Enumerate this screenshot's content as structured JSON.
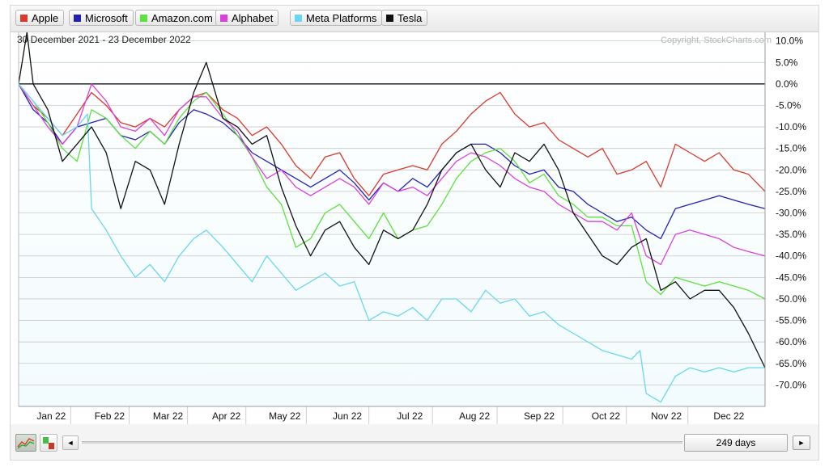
{
  "legend": [
    {
      "label": "Apple",
      "color": "#d93a2b"
    },
    {
      "label": "Microsoft",
      "color": "#2222b4"
    },
    {
      "label": "Amazon.com",
      "color": "#5ce23c"
    },
    {
      "label": "Alphabet",
      "color": "#dc40dc"
    },
    {
      "label": "Meta Platforms",
      "color": "#6ad6ef"
    },
    {
      "label": "Tesla",
      "color": "#111111"
    }
  ],
  "header": {
    "date_range": "30 December 2021 - 23 December 2022",
    "copyright": "Copyright, StockCharts.com"
  },
  "controls": {
    "period": "249 days",
    "left_arrow": "◄",
    "right_arrow": "►",
    "perf_icon": "performance-chart-icon",
    "bar_icon": "bar-chart-icon"
  },
  "chart_data": {
    "type": "line",
    "ylabel": "",
    "ytick_labels": [
      "10.0%",
      "5.0%",
      "0.0%",
      "-5.0%",
      "-10.0%",
      "-15.0%",
      "-20.0%",
      "-25.0%",
      "-30.0%",
      "-35.0%",
      "-40.0%",
      "-45.0%",
      "-50.0%",
      "-55.0%",
      "-60.0%",
      "-65.0%",
      "-70.0%"
    ],
    "ylim": [
      -75,
      12
    ],
    "ytick_values": [
      10,
      5,
      0,
      -5,
      -10,
      -15,
      -20,
      -25,
      -30,
      -35,
      -40,
      -45,
      -50,
      -55,
      -60,
      -65,
      -70
    ],
    "xtick_labels": [
      "Jan 22",
      "Feb 22",
      "Mar 22",
      "Apr 22",
      "May 22",
      "Jun 22",
      "Jul 22",
      "Aug 22",
      "Sep 22",
      "Oct 22",
      "Nov 22",
      "Dec 22"
    ],
    "xtick_dates": [
      "2022-01-10",
      "2022-02-07",
      "2022-03-07",
      "2022-04-04",
      "2022-05-02",
      "2022-06-01",
      "2022-07-01",
      "2022-08-01",
      "2022-09-01",
      "2022-10-03",
      "2022-11-01",
      "2022-12-01"
    ],
    "xlim": [
      "2021-12-30",
      "2022-12-23"
    ],
    "grid": true,
    "baseline": 0,
    "background": "#f2fbfe",
    "series": [
      {
        "name": "Apple",
        "color": "#d93a2b",
        "x": [
          "2021-12-30",
          "2022-01-06",
          "2022-01-13",
          "2022-01-20",
          "2022-01-27",
          "2022-02-03",
          "2022-02-10",
          "2022-02-17",
          "2022-02-24",
          "2022-03-03",
          "2022-03-10",
          "2022-03-17",
          "2022-03-24",
          "2022-03-30",
          "2022-04-07",
          "2022-04-14",
          "2022-04-21",
          "2022-04-28",
          "2022-05-05",
          "2022-05-12",
          "2022-05-19",
          "2022-05-26",
          "2022-06-02",
          "2022-06-09",
          "2022-06-16",
          "2022-06-23",
          "2022-06-30",
          "2022-07-07",
          "2022-07-14",
          "2022-07-21",
          "2022-07-28",
          "2022-08-04",
          "2022-08-11",
          "2022-08-18",
          "2022-08-25",
          "2022-09-01",
          "2022-09-08",
          "2022-09-15",
          "2022-09-22",
          "2022-09-29",
          "2022-10-06",
          "2022-10-13",
          "2022-10-20",
          "2022-10-27",
          "2022-11-03",
          "2022-11-10",
          "2022-11-17",
          "2022-11-24",
          "2022-12-01",
          "2022-12-08",
          "2022-12-15",
          "2022-12-23"
        ],
        "y": [
          0,
          -5,
          -8,
          -12,
          -7,
          -2,
          -5,
          -9,
          -10,
          -8,
          -10,
          -6,
          -3,
          -2,
          -6,
          -8,
          -12,
          -10,
          -14,
          -19,
          -22,
          -17,
          -16,
          -22,
          -26,
          -21,
          -20,
          -19,
          -20,
          -14,
          -11,
          -7,
          -4,
          -2,
          -7,
          -10,
          -9,
          -13,
          -15,
          -17,
          -15,
          -21,
          -20,
          -18,
          -24,
          -14,
          -16,
          -18,
          -16,
          -20,
          -21,
          -25
        ]
      },
      {
        "name": "Microsoft",
        "color": "#2222b4",
        "x": [
          "2021-12-30",
          "2022-01-06",
          "2022-01-13",
          "2022-01-20",
          "2022-01-27",
          "2022-02-03",
          "2022-02-10",
          "2022-02-17",
          "2022-02-24",
          "2022-03-03",
          "2022-03-10",
          "2022-03-17",
          "2022-03-24",
          "2022-03-30",
          "2022-04-07",
          "2022-04-14",
          "2022-04-21",
          "2022-04-28",
          "2022-05-05",
          "2022-05-12",
          "2022-05-19",
          "2022-05-26",
          "2022-06-02",
          "2022-06-09",
          "2022-06-16",
          "2022-06-23",
          "2022-06-30",
          "2022-07-07",
          "2022-07-14",
          "2022-07-21",
          "2022-07-28",
          "2022-08-04",
          "2022-08-11",
          "2022-08-18",
          "2022-08-25",
          "2022-09-01",
          "2022-09-08",
          "2022-09-15",
          "2022-09-22",
          "2022-09-29",
          "2022-10-06",
          "2022-10-13",
          "2022-10-20",
          "2022-10-27",
          "2022-11-03",
          "2022-11-10",
          "2022-11-17",
          "2022-11-24",
          "2022-12-01",
          "2022-12-08",
          "2022-12-15",
          "2022-12-23"
        ],
        "y": [
          0,
          -6,
          -9,
          -14,
          -10,
          -9,
          -8,
          -12,
          -13,
          -11,
          -14,
          -9,
          -6,
          -7,
          -9,
          -12,
          -16,
          -18,
          -20,
          -22,
          -24,
          -22,
          -20,
          -23,
          -27,
          -23,
          -25,
          -22,
          -24,
          -20,
          -16,
          -14,
          -14,
          -16,
          -19,
          -21,
          -20,
          -24,
          -25,
          -28,
          -30,
          -32,
          -31,
          -34,
          -36,
          -29,
          -28,
          -27,
          -26,
          -27,
          -28,
          -29
        ]
      },
      {
        "name": "Amazon.com",
        "color": "#5ce23c",
        "x": [
          "2021-12-30",
          "2022-01-06",
          "2022-01-13",
          "2022-01-20",
          "2022-01-27",
          "2022-02-03",
          "2022-02-10",
          "2022-02-17",
          "2022-02-24",
          "2022-03-03",
          "2022-03-10",
          "2022-03-17",
          "2022-03-24",
          "2022-03-30",
          "2022-04-07",
          "2022-04-14",
          "2022-04-21",
          "2022-04-28",
          "2022-05-05",
          "2022-05-12",
          "2022-05-19",
          "2022-05-26",
          "2022-06-02",
          "2022-06-09",
          "2022-06-16",
          "2022-06-23",
          "2022-06-30",
          "2022-07-07",
          "2022-07-14",
          "2022-07-21",
          "2022-07-28",
          "2022-08-04",
          "2022-08-11",
          "2022-08-18",
          "2022-08-25",
          "2022-09-01",
          "2022-09-08",
          "2022-09-15",
          "2022-09-22",
          "2022-09-29",
          "2022-10-06",
          "2022-10-13",
          "2022-10-20",
          "2022-10-27",
          "2022-11-03",
          "2022-11-10",
          "2022-11-17",
          "2022-11-24",
          "2022-12-01",
          "2022-12-08",
          "2022-12-15",
          "2022-12-23"
        ],
        "y": [
          0,
          -4,
          -9,
          -15,
          -18,
          -6,
          -8,
          -12,
          -15,
          -11,
          -14,
          -8,
          -4,
          -2,
          -7,
          -12,
          -17,
          -24,
          -28,
          -38,
          -36,
          -30,
          -28,
          -32,
          -36,
          -30,
          -36,
          -34,
          -33,
          -28,
          -22,
          -18,
          -16,
          -15,
          -18,
          -23,
          -21,
          -26,
          -28,
          -31,
          -31,
          -33,
          -33,
          -46,
          -49,
          -45,
          -46,
          -47,
          -46,
          -47,
          -48,
          -50
        ]
      },
      {
        "name": "Alphabet",
        "color": "#dc40dc",
        "x": [
          "2021-12-30",
          "2022-01-06",
          "2022-01-13",
          "2022-01-20",
          "2022-01-27",
          "2022-02-03",
          "2022-02-10",
          "2022-02-17",
          "2022-02-24",
          "2022-03-03",
          "2022-03-10",
          "2022-03-17",
          "2022-03-24",
          "2022-03-30",
          "2022-04-07",
          "2022-04-14",
          "2022-04-21",
          "2022-04-28",
          "2022-05-05",
          "2022-05-12",
          "2022-05-19",
          "2022-05-26",
          "2022-06-02",
          "2022-06-09",
          "2022-06-16",
          "2022-06-23",
          "2022-06-30",
          "2022-07-07",
          "2022-07-14",
          "2022-07-21",
          "2022-07-28",
          "2022-08-04",
          "2022-08-11",
          "2022-08-18",
          "2022-08-25",
          "2022-09-01",
          "2022-09-08",
          "2022-09-15",
          "2022-09-22",
          "2022-09-29",
          "2022-10-06",
          "2022-10-13",
          "2022-10-20",
          "2022-10-27",
          "2022-11-03",
          "2022-11-10",
          "2022-11-17",
          "2022-11-24",
          "2022-12-01",
          "2022-12-08",
          "2022-12-15",
          "2022-12-23"
        ],
        "y": [
          0,
          -5,
          -10,
          -14,
          -10,
          0,
          -4,
          -10,
          -11,
          -8,
          -12,
          -6,
          -3,
          -3,
          -8,
          -11,
          -17,
          -22,
          -20,
          -24,
          -26,
          -24,
          -22,
          -24,
          -28,
          -23,
          -25,
          -24,
          -26,
          -22,
          -18,
          -16,
          -17,
          -19,
          -22,
          -24,
          -25,
          -28,
          -30,
          -32,
          -32,
          -34,
          -30,
          -40,
          -42,
          -35,
          -34,
          -35,
          -36,
          -38,
          -39,
          -40
        ]
      },
      {
        "name": "Meta Platforms",
        "color": "#6ad6ef",
        "x": [
          "2021-12-30",
          "2022-01-06",
          "2022-01-13",
          "2022-01-20",
          "2022-01-27",
          "2022-02-01",
          "2022-02-03",
          "2022-02-10",
          "2022-02-17",
          "2022-02-24",
          "2022-03-03",
          "2022-03-10",
          "2022-03-17",
          "2022-03-24",
          "2022-03-30",
          "2022-04-07",
          "2022-04-14",
          "2022-04-21",
          "2022-04-28",
          "2022-05-05",
          "2022-05-12",
          "2022-05-19",
          "2022-05-26",
          "2022-06-02",
          "2022-06-09",
          "2022-06-16",
          "2022-06-23",
          "2022-06-30",
          "2022-07-07",
          "2022-07-14",
          "2022-07-21",
          "2022-07-28",
          "2022-08-04",
          "2022-08-11",
          "2022-08-18",
          "2022-08-25",
          "2022-09-01",
          "2022-09-08",
          "2022-09-15",
          "2022-09-22",
          "2022-09-29",
          "2022-10-06",
          "2022-10-13",
          "2022-10-20",
          "2022-10-24",
          "2022-10-27",
          "2022-11-03",
          "2022-11-10",
          "2022-11-17",
          "2022-11-24",
          "2022-12-01",
          "2022-12-08",
          "2022-12-15",
          "2022-12-23"
        ],
        "y": [
          0,
          -4,
          -8,
          -12,
          -10,
          -7,
          -29,
          -34,
          -40,
          -45,
          -42,
          -46,
          -40,
          -36,
          -34,
          -38,
          -42,
          -46,
          -40,
          -44,
          -48,
          -46,
          -44,
          -47,
          -46,
          -55,
          -53,
          -54,
          -52,
          -55,
          -50,
          -50,
          -53,
          -48,
          -51,
          -50,
          -54,
          -53,
          -56,
          -58,
          -60,
          -62,
          -63,
          -64,
          -62,
          -72,
          -74,
          -68,
          -66,
          -67,
          -66,
          -67,
          -66,
          -66
        ]
      },
      {
        "name": "Tesla",
        "color": "#111111",
        "x": [
          "2021-12-30",
          "2022-01-03",
          "2022-01-06",
          "2022-01-13",
          "2022-01-20",
          "2022-01-27",
          "2022-02-03",
          "2022-02-10",
          "2022-02-17",
          "2022-02-24",
          "2022-03-03",
          "2022-03-10",
          "2022-03-17",
          "2022-03-24",
          "2022-03-30",
          "2022-04-07",
          "2022-04-14",
          "2022-04-21",
          "2022-04-28",
          "2022-05-05",
          "2022-05-12",
          "2022-05-19",
          "2022-05-26",
          "2022-06-02",
          "2022-06-09",
          "2022-06-16",
          "2022-06-23",
          "2022-06-30",
          "2022-07-07",
          "2022-07-14",
          "2022-07-21",
          "2022-07-28",
          "2022-08-04",
          "2022-08-11",
          "2022-08-18",
          "2022-08-25",
          "2022-09-01",
          "2022-09-08",
          "2022-09-15",
          "2022-09-22",
          "2022-09-29",
          "2022-10-06",
          "2022-10-13",
          "2022-10-20",
          "2022-10-27",
          "2022-11-03",
          "2022-11-10",
          "2022-11-17",
          "2022-11-24",
          "2022-12-01",
          "2022-12-08",
          "2022-12-15",
          "2022-12-23"
        ],
        "y": [
          0,
          12,
          0,
          -6,
          -18,
          -14,
          -10,
          -16,
          -29,
          -18,
          -20,
          -28,
          -14,
          -2,
          5,
          -8,
          -10,
          -14,
          -12,
          -24,
          -33,
          -40,
          -34,
          -32,
          -38,
          -42,
          -34,
          -36,
          -34,
          -28,
          -20,
          -16,
          -14,
          -20,
          -24,
          -16,
          -18,
          -14,
          -20,
          -30,
          -35,
          -40,
          -42,
          -38,
          -36,
          -48,
          -46,
          -50,
          -48,
          -48,
          -52,
          -58,
          -66
        ]
      }
    ]
  }
}
